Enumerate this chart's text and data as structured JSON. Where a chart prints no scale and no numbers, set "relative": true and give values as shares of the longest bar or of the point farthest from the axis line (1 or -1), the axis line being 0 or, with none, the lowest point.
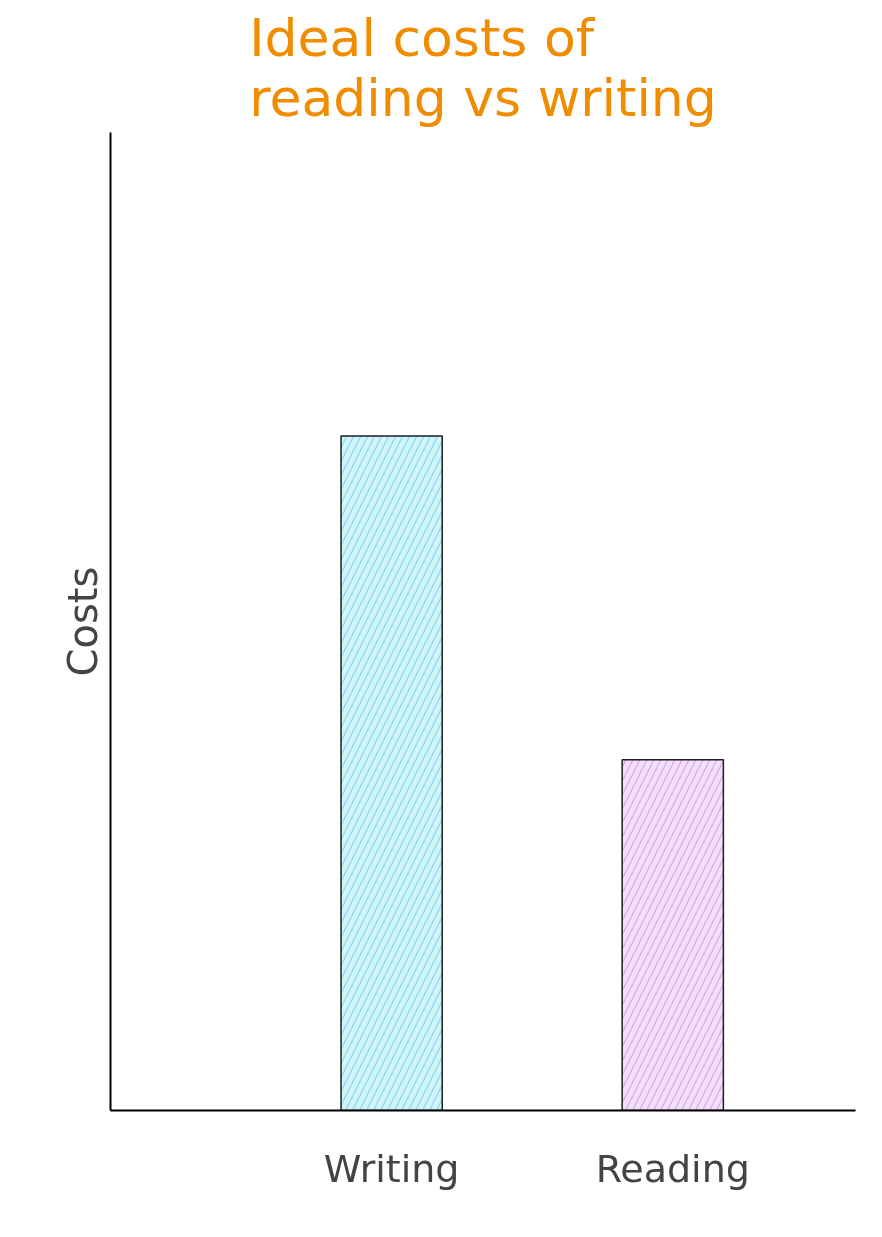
{
  "chart_data": {
    "type": "bar",
    "title": "Ideal costs of reading vs writing",
    "ylabel": "Costs",
    "relative": true,
    "categories": [
      "Writing",
      "Reading"
    ],
    "values": [
      1,
      0.52
    ],
    "colors": [
      "#7fdce8",
      "#dba4f0"
    ],
    "grid": false
  }
}
